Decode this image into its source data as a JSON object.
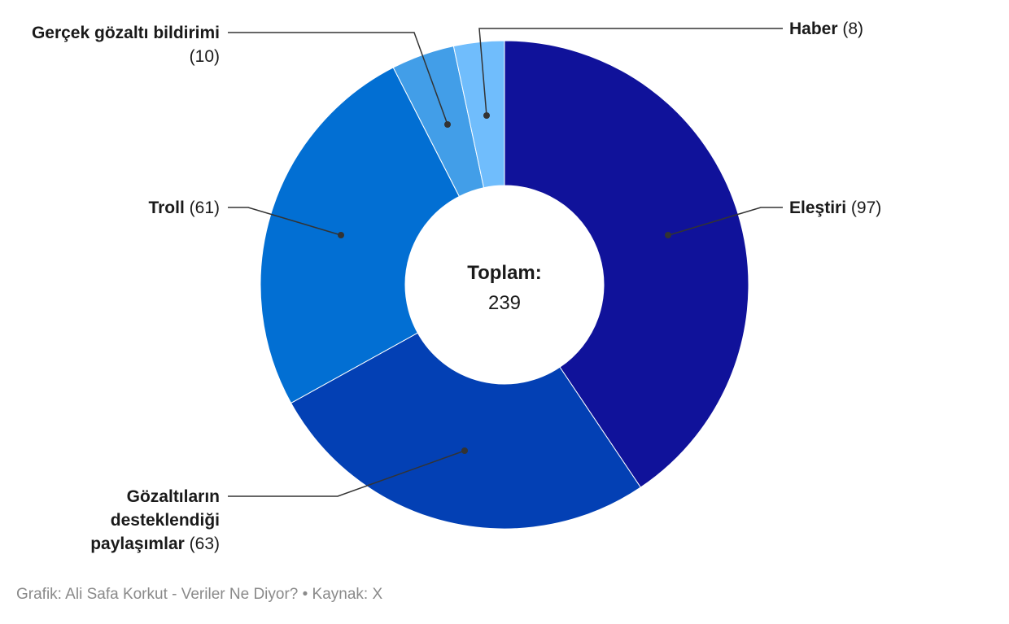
{
  "chart_data": {
    "type": "pie",
    "donut": true,
    "total_label": "Toplam:",
    "total_value": "239",
    "categories": [
      "Eleştiri",
      "Gözaltıların desteklendiği paylaşımlar",
      "Troll",
      "Gerçek gözaltı bildirimi",
      "Haber"
    ],
    "values": [
      97,
      63,
      61,
      10,
      8
    ],
    "colors": [
      "#10129a",
      "#0340b4",
      "#026fd3",
      "#429ee8",
      "#70bdfc"
    ],
    "start_angle_deg": 0,
    "direction": "clockwise"
  },
  "labels": {
    "elestiri": {
      "name": "Eleştiri",
      "count": "(97)"
    },
    "gozaltilarin": {
      "name_line1": "Gözaltıların",
      "name_line2": "desteklendiği",
      "name_line3": "paylaşımlar",
      "count": "(63)"
    },
    "troll": {
      "name": "Troll",
      "count": "(61)"
    },
    "gercek": {
      "name": "Gerçek gözaltı bildirimi",
      "count": "(10)"
    },
    "haber": {
      "name": "Haber",
      "count": "(8)"
    }
  },
  "footer": "Grafik: Ali Safa Korkut - Veriler Ne Diyor? • Kaynak: X"
}
